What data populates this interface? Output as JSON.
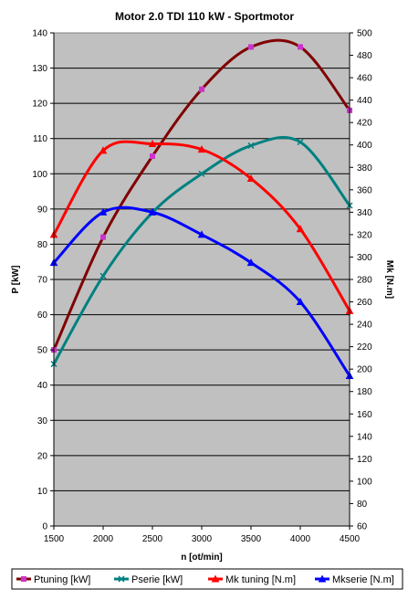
{
  "chart_data": {
    "type": "line",
    "title": "Motor 2.0 TDI 110 kW - Sportmotor",
    "xlabel": "n [ot/min]",
    "ylabel_left": "P [kW]",
    "ylabel_right": "Mk [N.m]",
    "x": [
      1500,
      2000,
      2500,
      3000,
      3500,
      4000,
      4500
    ],
    "xlim": [
      1500,
      4500
    ],
    "ylim_left": [
      0,
      140
    ],
    "ylim_right": [
      60,
      500
    ],
    "x_ticks": [
      1500,
      2000,
      2500,
      3000,
      3500,
      4000,
      4500
    ],
    "y_ticks_left": [
      0,
      10,
      20,
      30,
      40,
      50,
      60,
      70,
      80,
      90,
      100,
      110,
      120,
      130,
      140
    ],
    "y_ticks_right": [
      60,
      80,
      100,
      120,
      140,
      160,
      180,
      200,
      220,
      240,
      260,
      280,
      300,
      320,
      340,
      360,
      380,
      400,
      420,
      440,
      460,
      480,
      500
    ],
    "grid": "horizontal",
    "plot_background": "#c0c0c0",
    "legend_position": "bottom",
    "series": [
      {
        "name": "Ptuning [kW]",
        "axis": "left",
        "color": "#800000",
        "marker": "square",
        "marker_color": "#cc33cc",
        "values": [
          50,
          82,
          105,
          124,
          136,
          136,
          118
        ]
      },
      {
        "name": "Pserie [kW]",
        "axis": "left",
        "color": "#008080",
        "marker": "x",
        "marker_color": "#008080",
        "values": [
          46,
          71,
          89,
          100,
          108,
          109,
          91
        ]
      },
      {
        "name": "Mk tuning [N.m]",
        "axis": "right",
        "color": "#ff0000",
        "marker": "triangle",
        "marker_color": "#ff0000",
        "values": [
          320,
          395,
          401,
          396,
          370,
          325,
          252
        ]
      },
      {
        "name": "Mkserie [N.m]",
        "axis": "right",
        "color": "#0000ff",
        "marker": "triangle",
        "marker_color": "#0000ff",
        "values": [
          295,
          340,
          340,
          320,
          295,
          260,
          194
        ]
      }
    ]
  }
}
